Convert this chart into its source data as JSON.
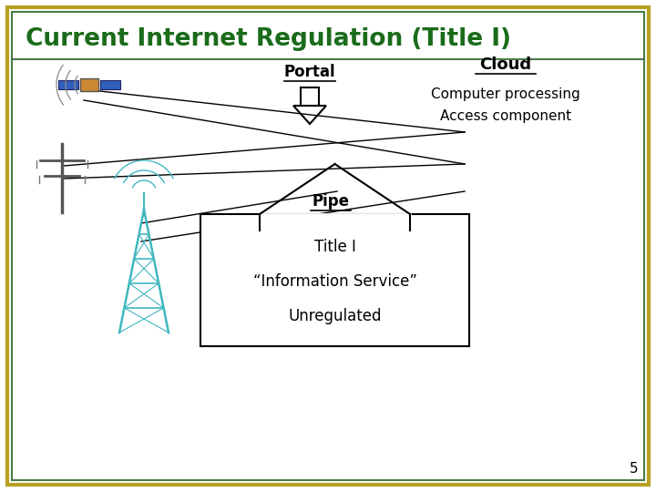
{
  "title": "Current Internet Regulation (Title I)",
  "title_color": "#1a6b1a",
  "title_fontsize": 19,
  "background_color": "#ffffff",
  "border_outer_color": "#b8a020",
  "border_inner_color": "#4a7a4a",
  "portal_label": "Portal",
  "cloud_label": "Cloud",
  "cloud_sub1": "Computer processing",
  "cloud_sub2": "Access component",
  "pipe_label": "Pipe",
  "box_line1": "Title I",
  "box_line2": "“Information Service”",
  "box_line3": "Unregulated",
  "page_number": "5"
}
